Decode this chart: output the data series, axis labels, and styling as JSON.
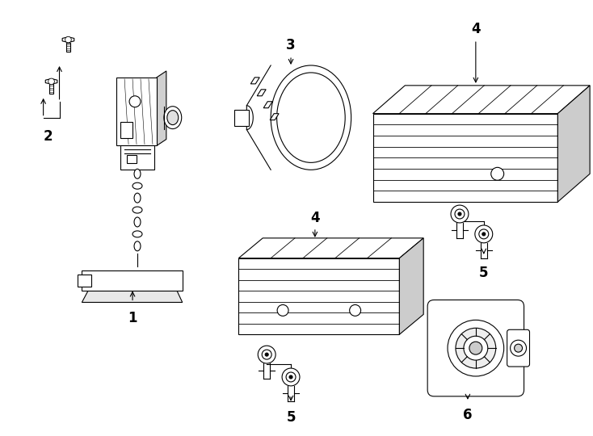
{
  "background_color": "#ffffff",
  "line_color": "#000000",
  "figsize": [
    7.34,
    5.4
  ],
  "dpi": 100,
  "lw": 0.8
}
